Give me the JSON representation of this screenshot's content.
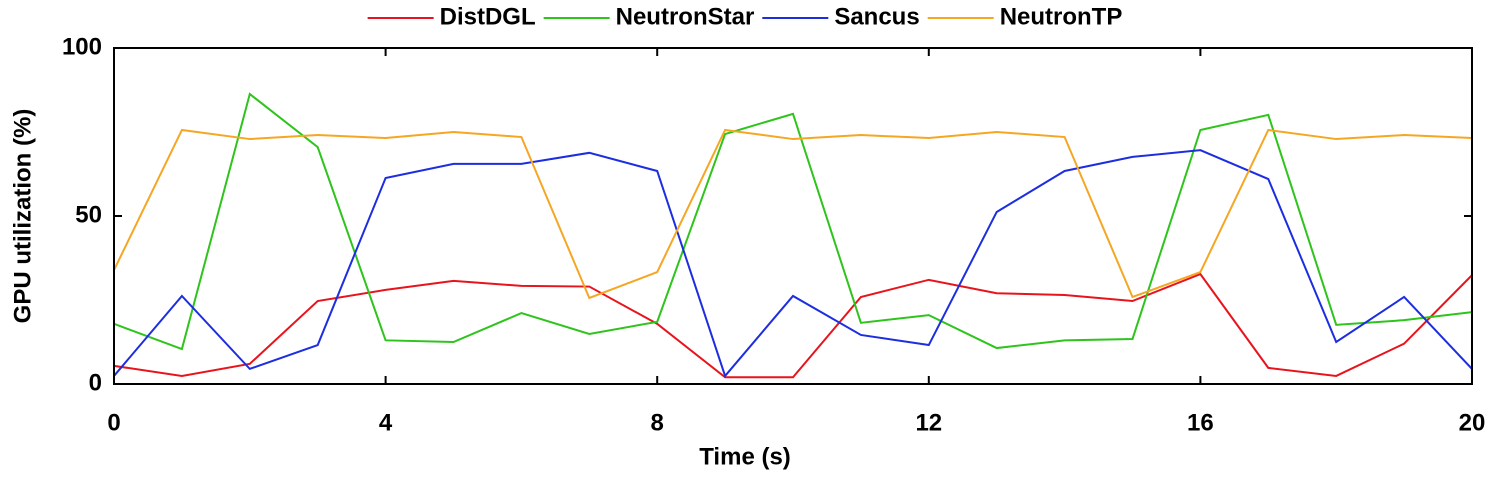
{
  "chart_data": {
    "type": "line",
    "x_label": "Time (s)",
    "y_label": "GPU utilization (%)",
    "x": [
      0,
      1,
      2,
      3,
      4,
      5,
      6,
      7,
      8,
      9,
      10,
      11,
      12,
      13,
      14,
      15,
      16,
      17,
      18,
      19,
      20
    ],
    "xlim": [
      0,
      20
    ],
    "xticks": [
      0,
      4,
      8,
      12,
      16,
      20
    ],
    "ylim": [
      0,
      100
    ],
    "yticks": [
      0,
      50,
      100
    ],
    "legend": "top",
    "series": [
      {
        "name": "DistDGL",
        "color": "#e8141c",
        "values": [
          5.4,
          2.4,
          6,
          24.7,
          28,
          30.7,
          29.2,
          29,
          17.9,
          2,
          2,
          25.9,
          31,
          27,
          26.5,
          24.7,
          32.7,
          4.8,
          2.4,
          12,
          32.4
        ]
      },
      {
        "name": "NeutronStar",
        "color": "#2ec41c",
        "values": [
          17.9,
          10.4,
          86.3,
          70.5,
          13,
          12.5,
          21.1,
          14.9,
          18.5,
          74.4,
          80.4,
          18.2,
          20.5,
          10.7,
          13,
          13.4,
          75.6,
          80.1,
          17.6,
          19,
          21.4
        ]
      },
      {
        "name": "Sancus",
        "color": "#1c2ee0",
        "values": [
          2.4,
          26.2,
          4.5,
          11.6,
          61.3,
          65.5,
          65.5,
          68.8,
          63.4,
          2.4,
          26.2,
          14.6,
          11.6,
          51.2,
          63.4,
          67.6,
          69.6,
          61,
          12.5,
          25.9,
          4.5
        ]
      },
      {
        "name": "NeutronTP",
        "color": "#f5a623",
        "values": [
          33.9,
          75.6,
          72.9,
          74.1,
          73.2,
          75,
          73.5,
          25.6,
          33.3,
          75.6,
          72.9,
          74.1,
          73.2,
          75,
          73.5,
          25.9,
          33.3,
          75.6,
          72.9,
          74.1,
          73.2
        ]
      }
    ]
  }
}
